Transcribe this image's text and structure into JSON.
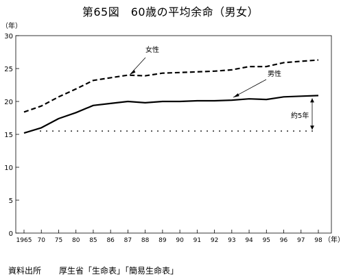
{
  "title": "第65図　60歳の平均余命（男女）",
  "source": {
    "label": "資料出所",
    "text": "厚生省「生命表」「簡易生命表」"
  },
  "chart_data": {
    "type": "line",
    "title": "第65図　60歳の平均余命（男女）",
    "ylabel": "（年）",
    "xlabel": "（年）",
    "ylim": [
      0,
      30
    ],
    "yticks": [
      0,
      5,
      10,
      15,
      20,
      25,
      30
    ],
    "x": [
      "1965",
      "70",
      "75",
      "80",
      "85",
      "86",
      "87",
      "88",
      "89",
      "90",
      "91",
      "92",
      "93",
      "94",
      "95",
      "96",
      "97",
      "98"
    ],
    "grid": false,
    "legend": "labels on lines",
    "series": [
      {
        "name": "女性",
        "style": "dashed",
        "color": "#000000",
        "values": [
          18.4,
          19.3,
          20.7,
          21.9,
          23.2,
          23.6,
          24.0,
          23.9,
          24.3,
          24.4,
          24.5,
          24.6,
          24.8,
          25.3,
          25.3,
          25.9,
          26.1,
          26.3
        ]
      },
      {
        "name": "男性",
        "style": "solid",
        "color": "#000000",
        "values": [
          15.2,
          16.0,
          17.4,
          18.3,
          19.4,
          19.7,
          20.0,
          19.8,
          20.0,
          20.0,
          20.1,
          20.1,
          20.2,
          20.4,
          20.3,
          20.7,
          20.8,
          20.9
        ]
      }
    ],
    "reference_line": {
      "value": 15.5,
      "style": "dotted"
    },
    "annotations": [
      "女性",
      "男性",
      "約5年"
    ]
  }
}
